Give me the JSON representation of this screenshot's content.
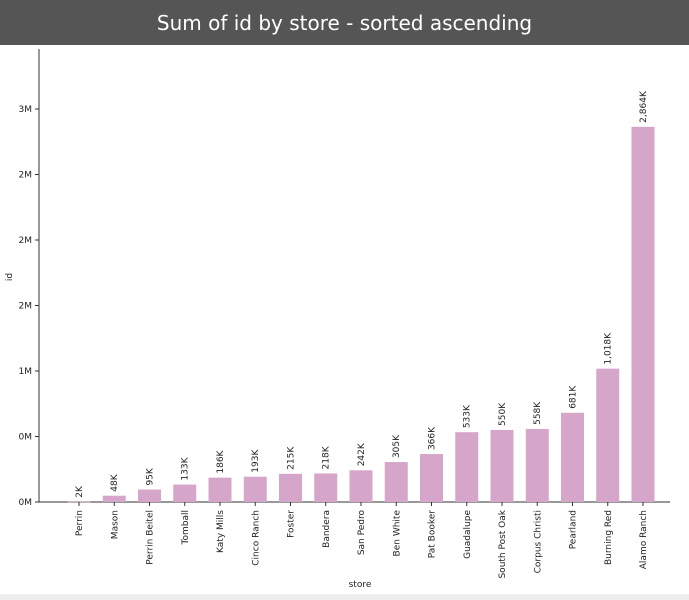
{
  "chart_data": {
    "type": "bar",
    "title": "Sum of id by store - sorted ascending",
    "xlabel": "store",
    "ylabel": "id",
    "ylim": [
      0,
      2950000
    ],
    "y_ticks": [
      {
        "value": 0,
        "label": "0M"
      },
      {
        "value": 500000,
        "label": "0M"
      },
      {
        "value": 1000000,
        "label": "1M"
      },
      {
        "value": 1500000,
        "label": "2M"
      },
      {
        "value": 2000000,
        "label": "2M"
      },
      {
        "value": 2500000,
        "label": "2M"
      },
      {
        "value": 3000000,
        "label": "3M"
      }
    ],
    "categories": [
      "Perrin",
      "Mason",
      "Perrin Beitel",
      "Tomball",
      "Katy Mills",
      "Cinco Ranch",
      "Foster",
      "Bandera",
      "San Pedro",
      "Ben White",
      "Pat Booker",
      "Guadalupe",
      "South Post Oak",
      "Corpus Christi",
      "Pearland",
      "Burning Red",
      "Alamo Ranch"
    ],
    "values": [
      2000,
      48000,
      95000,
      133000,
      186000,
      193000,
      215000,
      218000,
      242000,
      305000,
      366000,
      533000,
      550000,
      558000,
      681000,
      1018000,
      2864000
    ],
    "data_labels": [
      "2K",
      "48K",
      "95K",
      "133K",
      "186K",
      "193K",
      "215K",
      "218K",
      "242K",
      "305K",
      "366K",
      "533K",
      "550K",
      "558K",
      "681K",
      "1,018K",
      "2,864K"
    ],
    "bar_color": "#d5a6c9",
    "grid": false,
    "legend": "none"
  }
}
